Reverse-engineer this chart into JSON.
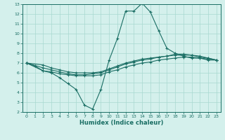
{
  "xlabel": "Humidex (Indice chaleur)",
  "bg_color": "#d4f0ec",
  "grid_color": "#a8d8d0",
  "line_color": "#1a6e64",
  "xlim": [
    -0.5,
    23.5
  ],
  "ylim": [
    2,
    13
  ],
  "xticks": [
    0,
    1,
    2,
    3,
    4,
    5,
    6,
    7,
    8,
    9,
    10,
    11,
    12,
    13,
    14,
    15,
    16,
    17,
    18,
    19,
    20,
    21,
    22,
    23
  ],
  "yticks": [
    2,
    3,
    4,
    5,
    6,
    7,
    8,
    9,
    10,
    11,
    12,
    13
  ],
  "line1_x": [
    0,
    1,
    2,
    3,
    4,
    5,
    6,
    7,
    8,
    9,
    10,
    11,
    12,
    13,
    14,
    15,
    16,
    17,
    18,
    19,
    20,
    21,
    22,
    23
  ],
  "line1_y": [
    7.0,
    6.7,
    6.2,
    6.0,
    5.5,
    4.9,
    4.3,
    2.7,
    2.3,
    4.3,
    7.3,
    9.5,
    12.3,
    12.3,
    13.1,
    12.2,
    10.3,
    8.5,
    8.0,
    7.7,
    7.5,
    7.5,
    7.3,
    7.3
  ],
  "line2_x": [
    0,
    2,
    3,
    4,
    5,
    6,
    7,
    8,
    9,
    10,
    11,
    12,
    13,
    14,
    15,
    16,
    17,
    18,
    19,
    20,
    21,
    22,
    23
  ],
  "line2_y": [
    7.0,
    6.2,
    6.1,
    5.9,
    5.8,
    5.7,
    5.7,
    5.7,
    5.8,
    6.1,
    6.3,
    6.6,
    6.8,
    7.0,
    7.1,
    7.3,
    7.4,
    7.5,
    7.6,
    7.6,
    7.5,
    7.4,
    7.3
  ],
  "line3_x": [
    0,
    2,
    3,
    4,
    5,
    6,
    7,
    8,
    9,
    10,
    11,
    12,
    13,
    14,
    15,
    16,
    17,
    18,
    19,
    20,
    21,
    22,
    23
  ],
  "line3_y": [
    7.0,
    6.5,
    6.3,
    6.1,
    5.9,
    5.8,
    5.8,
    5.9,
    6.0,
    6.3,
    6.6,
    6.9,
    7.1,
    7.3,
    7.4,
    7.6,
    7.7,
    7.8,
    7.8,
    7.8,
    7.6,
    7.5,
    7.3
  ],
  "line4_x": [
    0,
    2,
    3,
    4,
    5,
    6,
    7,
    8,
    9,
    10,
    11,
    12,
    13,
    14,
    15,
    16,
    17,
    18,
    19,
    20,
    21,
    22,
    23
  ],
  "line4_y": [
    7.0,
    6.8,
    6.5,
    6.3,
    6.1,
    6.0,
    6.0,
    6.0,
    6.1,
    6.4,
    6.7,
    7.0,
    7.2,
    7.4,
    7.5,
    7.6,
    7.7,
    7.9,
    7.9,
    7.8,
    7.7,
    7.5,
    7.3
  ]
}
